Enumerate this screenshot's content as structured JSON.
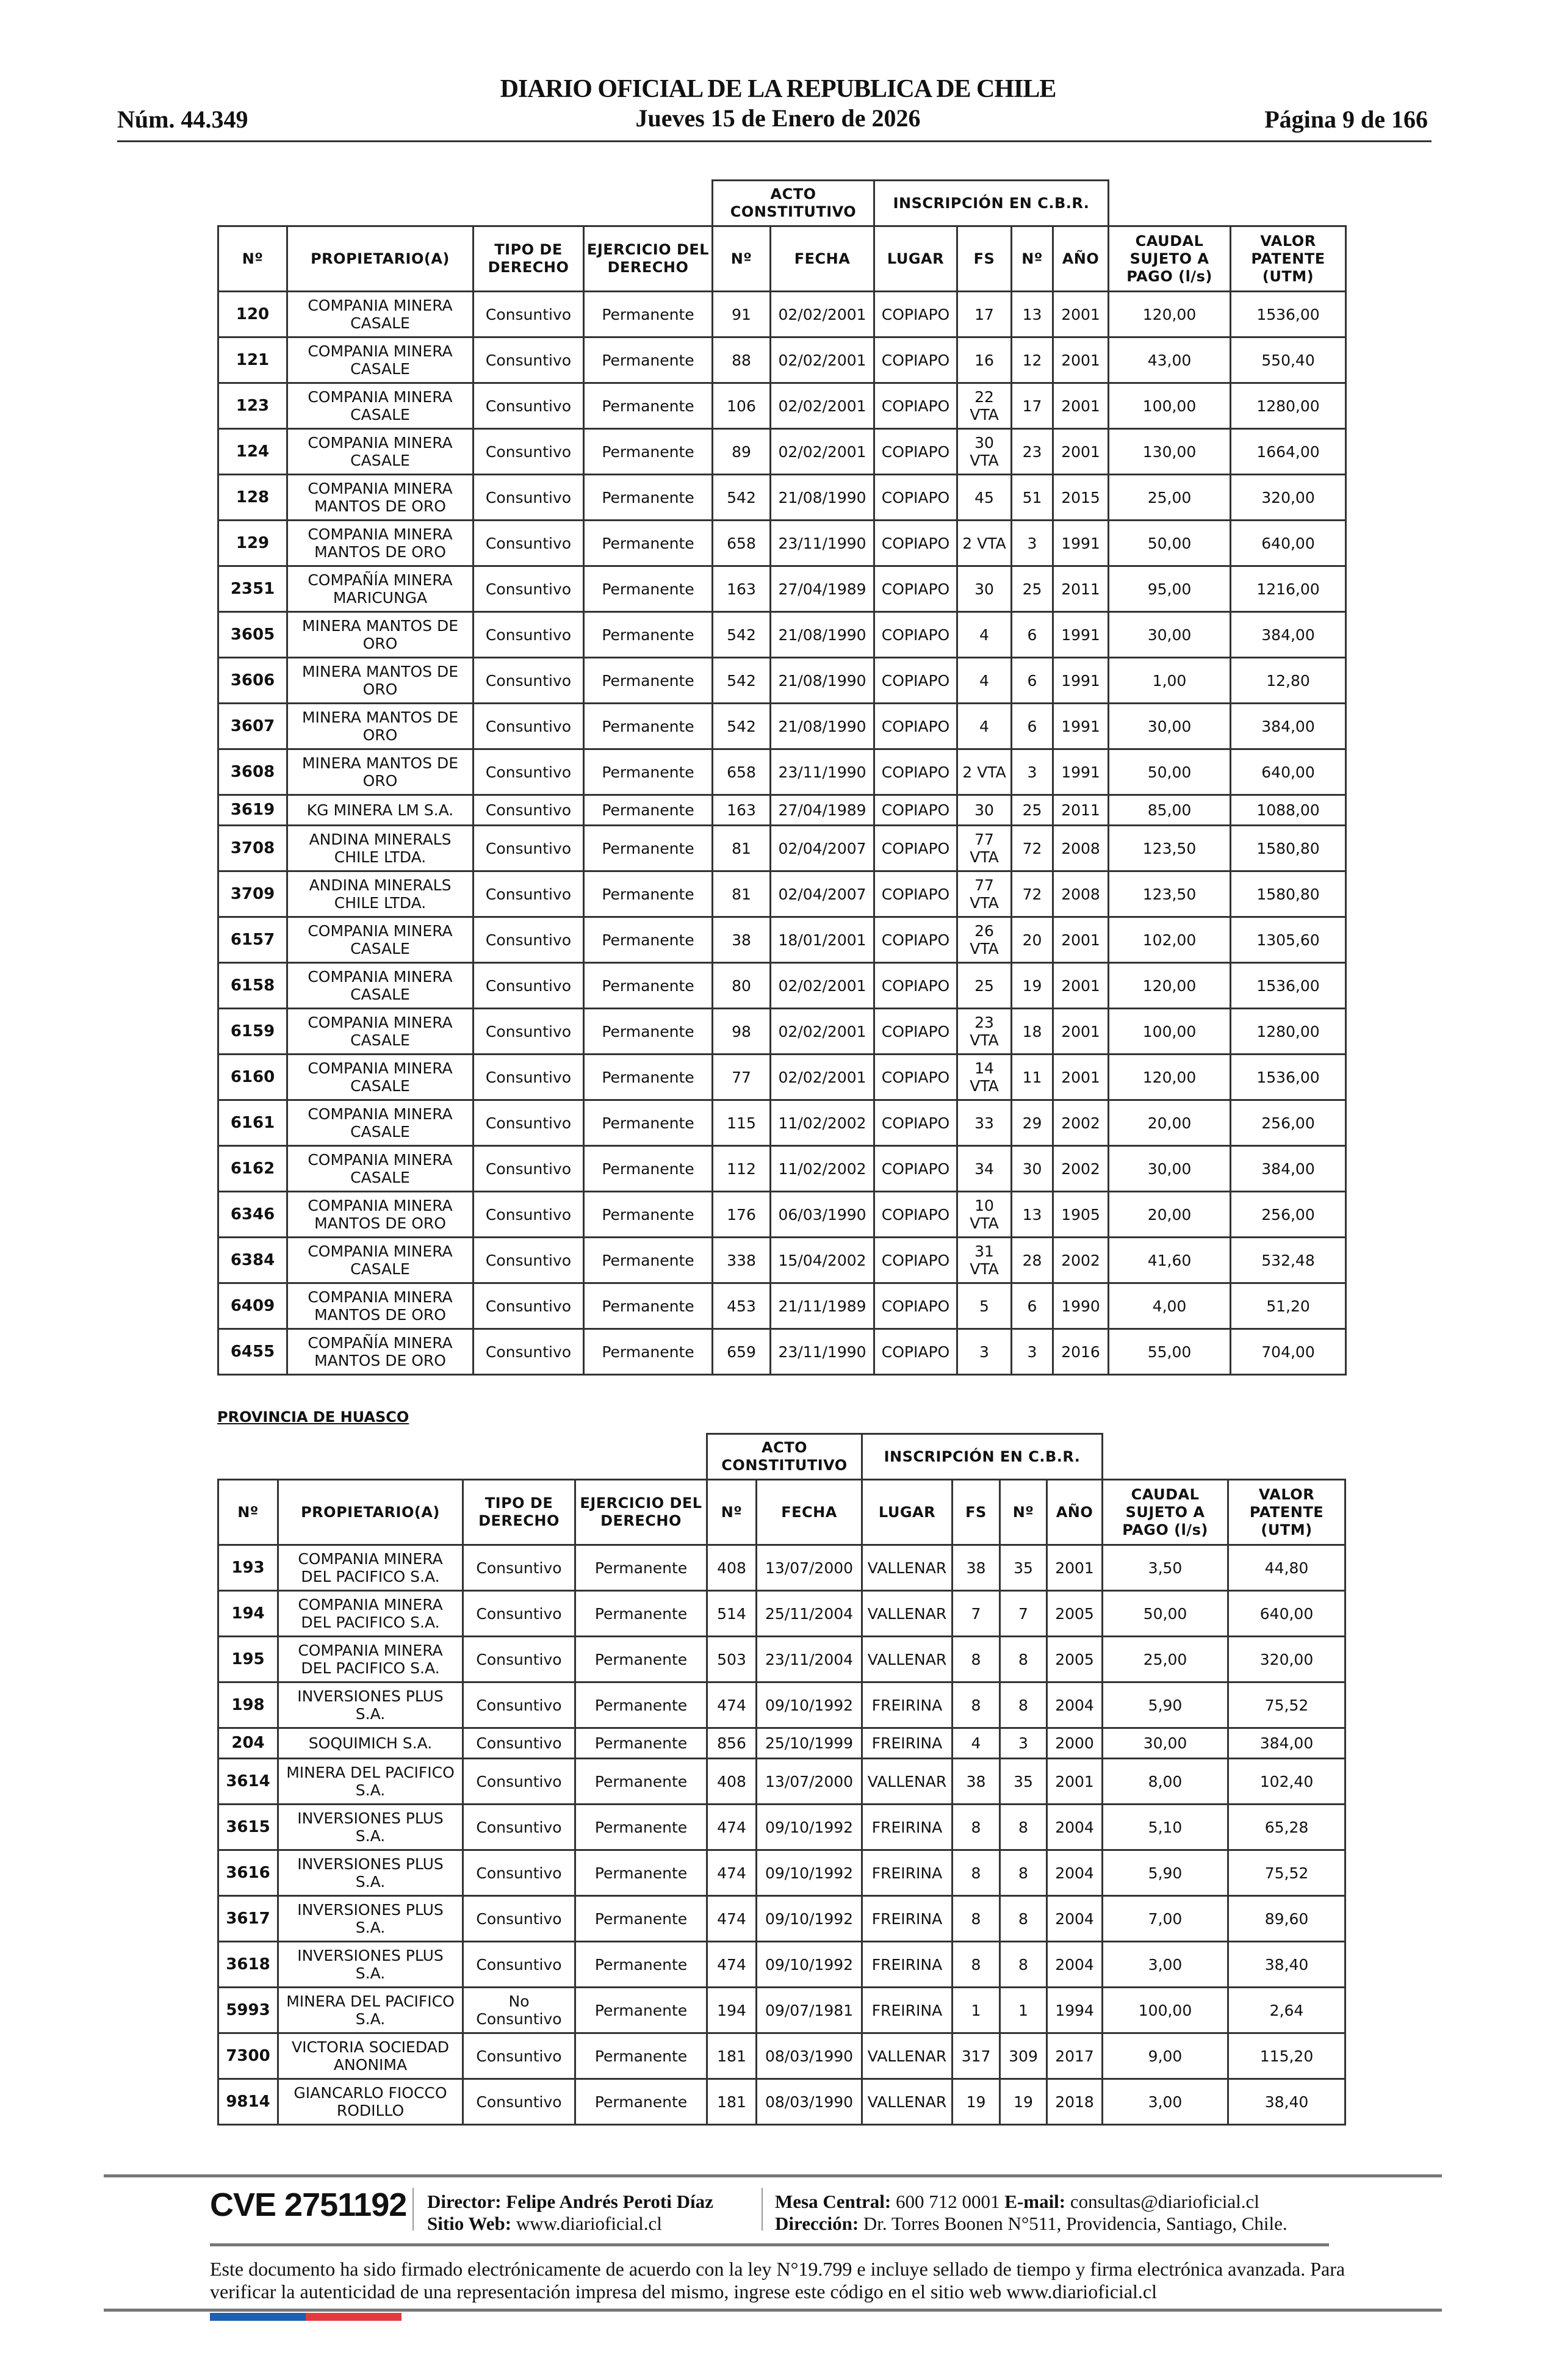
{
  "header": {
    "title": "DIARIO OFICIAL DE LA REPUBLICA DE CHILE",
    "issue": "Núm. 44.349",
    "date": "Jueves 15 de Enero de 2026",
    "page": "Página 9 de 166"
  },
  "columns": {
    "group_acto": "ACTO CONSTITUTIVO",
    "group_cbr": "INSCRIPCIÓN EN C.B.R.",
    "headers": [
      "Nº",
      "PROPIETARIO(A)",
      "TIPO DE DERECHO",
      "EJERCICIO DEL DERECHO",
      "Nº",
      "FECHA",
      "LUGAR",
      "FS",
      "Nº",
      "AÑO",
      "CAUDAL SUJETO A PAGO (l/s)",
      "VALOR PATENTE (UTM)"
    ]
  },
  "table1": {
    "rows": [
      [
        "120",
        "COMPANIA MINERA CASALE",
        "Consuntivo",
        "Permanente",
        "91",
        "02/02/2001",
        "COPIAPO",
        "17",
        "13",
        "2001",
        "120,00",
        "1536,00"
      ],
      [
        "121",
        "COMPANIA MINERA CASALE",
        "Consuntivo",
        "Permanente",
        "88",
        "02/02/2001",
        "COPIAPO",
        "16",
        "12",
        "2001",
        "43,00",
        "550,40"
      ],
      [
        "123",
        "COMPANIA MINERA CASALE",
        "Consuntivo",
        "Permanente",
        "106",
        "02/02/2001",
        "COPIAPO",
        "22 VTA",
        "17",
        "2001",
        "100,00",
        "1280,00"
      ],
      [
        "124",
        "COMPANIA MINERA CASALE",
        "Consuntivo",
        "Permanente",
        "89",
        "02/02/2001",
        "COPIAPO",
        "30 VTA",
        "23",
        "2001",
        "130,00",
        "1664,00"
      ],
      [
        "128",
        "COMPANIA MINERA MANTOS DE ORO",
        "Consuntivo",
        "Permanente",
        "542",
        "21/08/1990",
        "COPIAPO",
        "45",
        "51",
        "2015",
        "25,00",
        "320,00"
      ],
      [
        "129",
        "COMPANIA MINERA MANTOS DE ORO",
        "Consuntivo",
        "Permanente",
        "658",
        "23/11/1990",
        "COPIAPO",
        "2 VTA",
        "3",
        "1991",
        "50,00",
        "640,00"
      ],
      [
        "2351",
        "COMPAÑÍA MINERA MARICUNGA",
        "Consuntivo",
        "Permanente",
        "163",
        "27/04/1989",
        "COPIAPO",
        "30",
        "25",
        "2011",
        "95,00",
        "1216,00"
      ],
      [
        "3605",
        "MINERA MANTOS DE ORO",
        "Consuntivo",
        "Permanente",
        "542",
        "21/08/1990",
        "COPIAPO",
        "4",
        "6",
        "1991",
        "30,00",
        "384,00"
      ],
      [
        "3606",
        "MINERA MANTOS DE ORO",
        "Consuntivo",
        "Permanente",
        "542",
        "21/08/1990",
        "COPIAPO",
        "4",
        "6",
        "1991",
        "1,00",
        "12,80"
      ],
      [
        "3607",
        "MINERA MANTOS DE ORO",
        "Consuntivo",
        "Permanente",
        "542",
        "21/08/1990",
        "COPIAPO",
        "4",
        "6",
        "1991",
        "30,00",
        "384,00"
      ],
      [
        "3608",
        "MINERA MANTOS DE ORO",
        "Consuntivo",
        "Permanente",
        "658",
        "23/11/1990",
        "COPIAPO",
        "2 VTA",
        "3",
        "1991",
        "50,00",
        "640,00"
      ],
      [
        "3619",
        "KG MINERA LM S.A.",
        "Consuntivo",
        "Permanente",
        "163",
        "27/04/1989",
        "COPIAPO",
        "30",
        "25",
        "2011",
        "85,00",
        "1088,00"
      ],
      [
        "3708",
        "ANDINA MINERALS CHILE LTDA.",
        "Consuntivo",
        "Permanente",
        "81",
        "02/04/2007",
        "COPIAPO",
        "77 VTA",
        "72",
        "2008",
        "123,50",
        "1580,80"
      ],
      [
        "3709",
        "ANDINA MINERALS CHILE LTDA.",
        "Consuntivo",
        "Permanente",
        "81",
        "02/04/2007",
        "COPIAPO",
        "77 VTA",
        "72",
        "2008",
        "123,50",
        "1580,80"
      ],
      [
        "6157",
        "COMPANIA MINERA CASALE",
        "Consuntivo",
        "Permanente",
        "38",
        "18/01/2001",
        "COPIAPO",
        "26 VTA",
        "20",
        "2001",
        "102,00",
        "1305,60"
      ],
      [
        "6158",
        "COMPANIA MINERA CASALE",
        "Consuntivo",
        "Permanente",
        "80",
        "02/02/2001",
        "COPIAPO",
        "25",
        "19",
        "2001",
        "120,00",
        "1536,00"
      ],
      [
        "6159",
        "COMPANIA MINERA CASALE",
        "Consuntivo",
        "Permanente",
        "98",
        "02/02/2001",
        "COPIAPO",
        "23 VTA",
        "18",
        "2001",
        "100,00",
        "1280,00"
      ],
      [
        "6160",
        "COMPANIA MINERA CASALE",
        "Consuntivo",
        "Permanente",
        "77",
        "02/02/2001",
        "COPIAPO",
        "14 VTA",
        "11",
        "2001",
        "120,00",
        "1536,00"
      ],
      [
        "6161",
        "COMPANIA MINERA CASALE",
        "Consuntivo",
        "Permanente",
        "115",
        "11/02/2002",
        "COPIAPO",
        "33",
        "29",
        "2002",
        "20,00",
        "256,00"
      ],
      [
        "6162",
        "COMPANIA MINERA CASALE",
        "Consuntivo",
        "Permanente",
        "112",
        "11/02/2002",
        "COPIAPO",
        "34",
        "30",
        "2002",
        "30,00",
        "384,00"
      ],
      [
        "6346",
        "COMPANIA MINERA MANTOS DE ORO",
        "Consuntivo",
        "Permanente",
        "176",
        "06/03/1990",
        "COPIAPO",
        "10 VTA",
        "13",
        "1905",
        "20,00",
        "256,00"
      ],
      [
        "6384",
        "COMPANIA MINERA CASALE",
        "Consuntivo",
        "Permanente",
        "338",
        "15/04/2002",
        "COPIAPO",
        "31 VTA",
        "28",
        "2002",
        "41,60",
        "532,48"
      ],
      [
        "6409",
        "COMPANIA MINERA MANTOS DE ORO",
        "Consuntivo",
        "Permanente",
        "453",
        "21/11/1989",
        "COPIAPO",
        "5",
        "6",
        "1990",
        "4,00",
        "51,20"
      ],
      [
        "6455",
        "COMPAÑÍA MINERA MANTOS DE ORO",
        "Consuntivo",
        "Permanente",
        "659",
        "23/11/1990",
        "COPIAPO",
        "3",
        "3",
        "2016",
        "55,00",
        "704,00"
      ]
    ]
  },
  "table2": {
    "section_title": "PROVINCIA DE HUASCO",
    "rows": [
      [
        "193",
        "COMPANIA MINERA DEL PACIFICO S.A.",
        "Consuntivo",
        "Permanente",
        "408",
        "13/07/2000",
        "VALLENAR",
        "38",
        "35",
        "2001",
        "3,50",
        "44,80"
      ],
      [
        "194",
        "COMPANIA MINERA DEL PACIFICO S.A.",
        "Consuntivo",
        "Permanente",
        "514",
        "25/11/2004",
        "VALLENAR",
        "7",
        "7",
        "2005",
        "50,00",
        "640,00"
      ],
      [
        "195",
        "COMPANIA MINERA DEL PACIFICO S.A.",
        "Consuntivo",
        "Permanente",
        "503",
        "23/11/2004",
        "VALLENAR",
        "8",
        "8",
        "2005",
        "25,00",
        "320,00"
      ],
      [
        "198",
        "INVERSIONES PLUS S.A.",
        "Consuntivo",
        "Permanente",
        "474",
        "09/10/1992",
        "FREIRINA",
        "8",
        "8",
        "2004",
        "5,90",
        "75,52"
      ],
      [
        "204",
        "SOQUIMICH S.A.",
        "Consuntivo",
        "Permanente",
        "856",
        "25/10/1999",
        "FREIRINA",
        "4",
        "3",
        "2000",
        "30,00",
        "384,00"
      ],
      [
        "3614",
        "MINERA DEL PACIFICO S.A.",
        "Consuntivo",
        "Permanente",
        "408",
        "13/07/2000",
        "VALLENAR",
        "38",
        "35",
        "2001",
        "8,00",
        "102,40"
      ],
      [
        "3615",
        "INVERSIONES PLUS S.A.",
        "Consuntivo",
        "Permanente",
        "474",
        "09/10/1992",
        "FREIRINA",
        "8",
        "8",
        "2004",
        "5,10",
        "65,28"
      ],
      [
        "3616",
        "INVERSIONES PLUS S.A.",
        "Consuntivo",
        "Permanente",
        "474",
        "09/10/1992",
        "FREIRINA",
        "8",
        "8",
        "2004",
        "5,90",
        "75,52"
      ],
      [
        "3617",
        "INVERSIONES PLUS S.A.",
        "Consuntivo",
        "Permanente",
        "474",
        "09/10/1992",
        "FREIRINA",
        "8",
        "8",
        "2004",
        "7,00",
        "89,60"
      ],
      [
        "3618",
        "INVERSIONES PLUS S.A.",
        "Consuntivo",
        "Permanente",
        "474",
        "09/10/1992",
        "FREIRINA",
        "8",
        "8",
        "2004",
        "3,00",
        "38,40"
      ],
      [
        "5993",
        "MINERA DEL PACIFICO S.A.",
        "No Consuntivo",
        "Permanente",
        "194",
        "09/07/1981",
        "FREIRINA",
        "1",
        "1",
        "1994",
        "100,00",
        "2,64"
      ],
      [
        "7300",
        "VICTORIA SOCIEDAD ANONIMA",
        "Consuntivo",
        "Permanente",
        "181",
        "08/03/1990",
        "VALLENAR",
        "317",
        "309",
        "2017",
        "9,00",
        "115,20"
      ],
      [
        "9814",
        "GIANCARLO FIOCCO RODILLO",
        "Consuntivo",
        "Permanente",
        "181",
        "08/03/1990",
        "VALLENAR",
        "19",
        "19",
        "2018",
        "3,00",
        "38,40"
      ]
    ]
  },
  "footer": {
    "cve": "CVE 2751192",
    "director_label": "Director:",
    "director": "Felipe Andrés Peroti Díaz",
    "web_label": "Sitio Web:",
    "web": "www.diarioficial.cl",
    "phone_label": "Mesa Central:",
    "phone": "600 712 0001",
    "email_label": "E-mail:",
    "email": "consultas@diarioficial.cl",
    "address_label": "Dirección:",
    "address": "Dr. Torres Boonen N°511, Providencia, Santiago, Chile.",
    "legal": "Este documento ha sido firmado electrónicamente de acuerdo con la ley N°19.799 e incluye sellado de tiempo y firma electrónica avanzada. Para verificar la autenticidad de una representación impresa del mismo, ingrese este código en el sitio web www.diarioficial.cl",
    "bar_colors": [
      "#1f5fb0",
      "#e8383f"
    ]
  }
}
